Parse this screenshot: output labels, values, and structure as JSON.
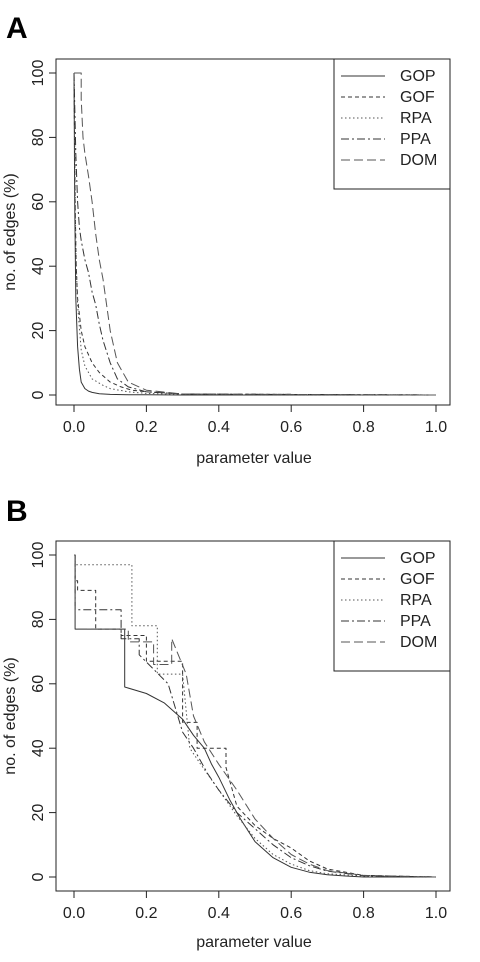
{
  "chart_data": [
    {
      "panel": "A",
      "type": "line",
      "xlabel": "parameter value",
      "ylabel": "no. of edges (%)",
      "xlim": [
        0,
        1
      ],
      "ylim": [
        0,
        100
      ],
      "xticks": [
        "0.0",
        "0.2",
        "0.4",
        "0.6",
        "0.8",
        "1.0"
      ],
      "yticks": [
        "0",
        "20",
        "40",
        "60",
        "80",
        "100"
      ],
      "legend_position": "top-right",
      "series": [
        {
          "name": "GOP",
          "dash": "",
          "color": "#333333",
          "x": [
            0,
            0.002,
            0.005,
            0.01,
            0.015,
            0.02,
            0.03,
            0.04,
            0.05,
            0.07,
            0.1,
            0.15,
            0.2,
            0.3,
            1.0
          ],
          "y": [
            100,
            60,
            30,
            15,
            8,
            4,
            2,
            1.2,
            0.8,
            0.4,
            0.2,
            0.1,
            0.05,
            0,
            0
          ]
        },
        {
          "name": "GOF",
          "dash": "4,3",
          "color": "#333333",
          "x": [
            0,
            0.003,
            0.006,
            0.01,
            0.02,
            0.03,
            0.05,
            0.07,
            0.1,
            0.13,
            0.16,
            0.2,
            0.3,
            1.0
          ],
          "y": [
            100,
            60,
            40,
            30,
            20,
            15,
            10,
            7,
            4,
            2.5,
            1.5,
            1,
            0.3,
            0
          ]
        },
        {
          "name": "RPA",
          "dash": "1.5,2.5",
          "color": "#555555",
          "x": [
            0,
            0.005,
            0.01,
            0.02,
            0.03,
            0.05,
            0.08,
            0.1,
            0.15,
            0.2,
            0.3,
            1.0
          ],
          "y": [
            100,
            45,
            28,
            14,
            9,
            5,
            3,
            2,
            1,
            0.5,
            0.2,
            0
          ]
        },
        {
          "name": "PPA",
          "dash": "8,3,2,3",
          "color": "#333333",
          "x": [
            0,
            0.005,
            0.01,
            0.015,
            0.02,
            0.03,
            0.04,
            0.05,
            0.06,
            0.07,
            0.08,
            0.1,
            0.12,
            0.15,
            0.2,
            0.3,
            1.0
          ],
          "y": [
            100,
            75,
            60,
            52,
            48,
            42,
            38,
            32,
            28,
            22,
            17,
            10,
            5,
            2.5,
            1,
            0.3,
            0
          ]
        },
        {
          "name": "DOM",
          "dash": "9,4",
          "color": "#555555",
          "x": [
            0,
            0.02,
            0.02,
            0.025,
            0.03,
            0.04,
            0.05,
            0.06,
            0.07,
            0.08,
            0.09,
            0.1,
            0.12,
            0.15,
            0.2,
            0.3,
            1.0
          ],
          "y": [
            100,
            100,
            92,
            80,
            75,
            68,
            60,
            50,
            42,
            36,
            28,
            20,
            10,
            4,
            1.5,
            0.3,
            0
          ]
        }
      ]
    },
    {
      "panel": "B",
      "type": "line",
      "xlabel": "parameter value",
      "ylabel": "no. of edges (%)",
      "xlim": [
        0,
        1
      ],
      "ylim": [
        0,
        100
      ],
      "xticks": [
        "0.0",
        "0.2",
        "0.4",
        "0.6",
        "0.8",
        "1.0"
      ],
      "yticks": [
        "0",
        "20",
        "40",
        "60",
        "80",
        "100"
      ],
      "legend_position": "top-right",
      "series": [
        {
          "name": "GOP",
          "dash": "",
          "color": "#333333",
          "x": [
            0,
            0.003,
            0.003,
            0.14,
            0.14,
            0.2,
            0.25,
            0.3,
            0.33,
            0.36,
            0.38,
            0.4,
            0.43,
            0.46,
            0.5,
            0.55,
            0.6,
            0.65,
            0.7,
            0.75,
            0.8,
            1.0
          ],
          "y": [
            100,
            100,
            77,
            77,
            59,
            57,
            54,
            49,
            44,
            40,
            35,
            31,
            24,
            18,
            11,
            6,
            3,
            1.5,
            0.7,
            0.3,
            0,
            0
          ]
        },
        {
          "name": "GOF",
          "dash": "4,3",
          "color": "#333333",
          "x": [
            0,
            0.003,
            0.003,
            0.01,
            0.01,
            0.06,
            0.06,
            0.13,
            0.13,
            0.2,
            0.2,
            0.3,
            0.3,
            0.34,
            0.34,
            0.42,
            0.42,
            0.45,
            0.5,
            0.55,
            0.6,
            0.65,
            0.7,
            0.8,
            1.0
          ],
          "y": [
            100,
            100,
            92,
            92,
            89,
            89,
            77,
            77,
            75,
            75,
            67,
            67,
            48,
            48,
            40,
            40,
            34,
            22,
            16,
            12,
            9,
            5,
            2.5,
            0.5,
            0
          ]
        },
        {
          "name": "RPA",
          "dash": "1.5,2.5",
          "color": "#555555",
          "x": [
            0,
            0.003,
            0.003,
            0.16,
            0.16,
            0.23,
            0.23,
            0.3,
            0.32,
            0.35,
            0.4,
            0.45,
            0.5,
            0.55,
            0.6,
            0.65,
            0.7,
            0.8,
            1.0
          ],
          "y": [
            100,
            100,
            97,
            97,
            78,
            78,
            63,
            63,
            40,
            35,
            27,
            19,
            12,
            7,
            4,
            2,
            1,
            0.3,
            0
          ]
        },
        {
          "name": "PPA",
          "dash": "8,3,2,3",
          "color": "#333333",
          "x": [
            0,
            0.003,
            0.003,
            0.13,
            0.13,
            0.18,
            0.18,
            0.26,
            0.3,
            0.33,
            0.37,
            0.4,
            0.45,
            0.5,
            0.55,
            0.6,
            0.65,
            0.7,
            0.8,
            1.0
          ],
          "y": [
            100,
            100,
            83,
            83,
            74,
            74,
            69,
            60,
            45,
            40,
            32,
            27,
            20,
            15,
            10,
            6,
            3.5,
            1.8,
            0.4,
            0
          ]
        },
        {
          "name": "DOM",
          "dash": "9,4",
          "color": "#555555",
          "x": [
            0,
            0.003,
            0.003,
            0.15,
            0.15,
            0.22,
            0.22,
            0.27,
            0.27,
            0.31,
            0.33,
            0.36,
            0.4,
            0.45,
            0.5,
            0.55,
            0.6,
            0.65,
            0.7,
            0.8,
            1.0
          ],
          "y": [
            100,
            100,
            77,
            77,
            73,
            73,
            66,
            66,
            74,
            63,
            50,
            42,
            35,
            27,
            18,
            12,
            7,
            4,
            2,
            0.5,
            0
          ]
        }
      ]
    }
  ]
}
